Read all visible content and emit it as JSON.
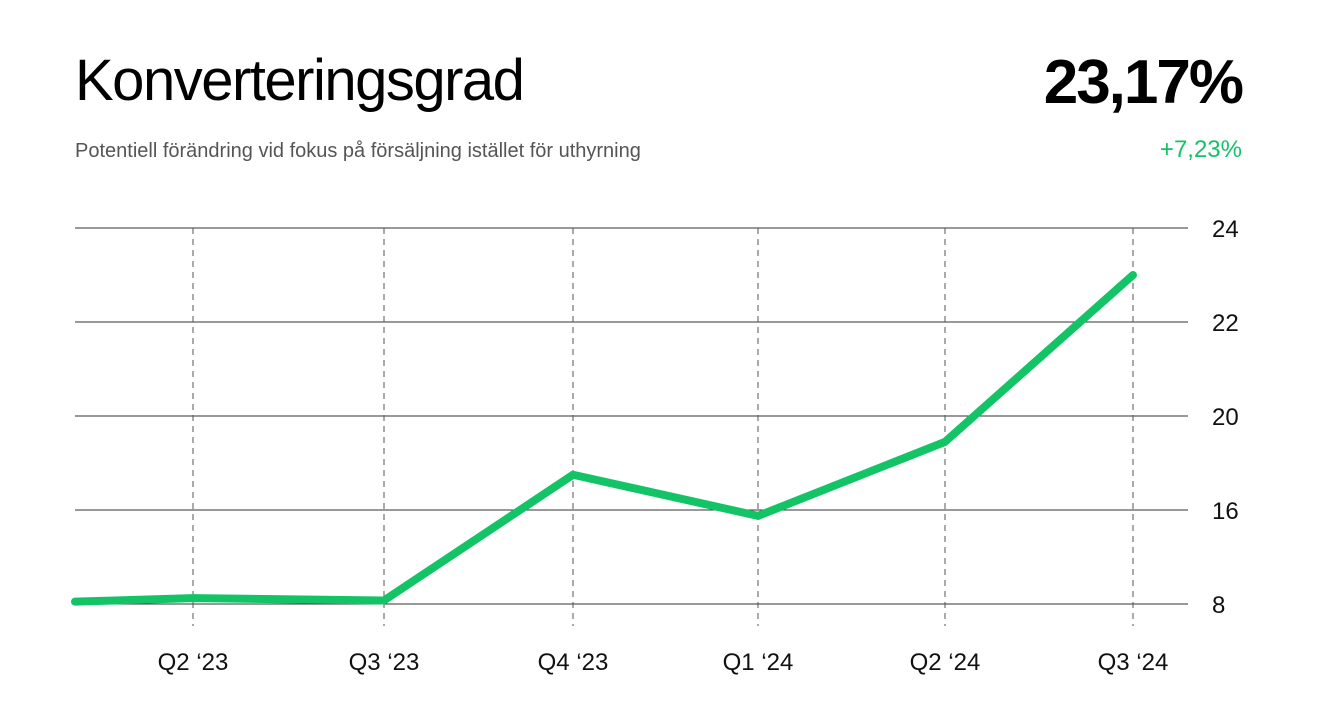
{
  "header": {
    "title": "Konverteringsgrad",
    "subtitle": "Potentiell förändring vid fokus på försäljning istället för uthyrning",
    "value": "23,17%",
    "change": "+7,23%"
  },
  "colors": {
    "line": "#12c466",
    "change": "#12c466",
    "grid": "#333333"
  },
  "chart_data": {
    "type": "line",
    "title": "Konverteringsgrad",
    "x_ticks": [
      "Q2 ‘23",
      "Q3 ‘23",
      "Q4 ‘23",
      "Q1 ‘24",
      "Q2 ‘24",
      "Q3 ‘24"
    ],
    "y_ticks": [
      "24",
      "22",
      "20",
      "16",
      "8"
    ],
    "y_axis_position": "right",
    "grid": {
      "horizontal": "solid",
      "vertical": "dashed"
    },
    "series": [
      {
        "points": [
          {
            "x": "start",
            "y": "8,2"
          },
          {
            "x": "Q2 ‘23",
            "y": "8,5"
          },
          {
            "x": "Q3 ‘23",
            "y": "8,3"
          },
          {
            "x": "Q4 ‘23",
            "y": "17,5"
          },
          {
            "x": "Q1 ‘24",
            "y": "15,5"
          },
          {
            "x": "Q2 ‘24",
            "y": "18,9"
          },
          {
            "x": "Q3 ‘24",
            "y": "23,0"
          }
        ]
      }
    ]
  }
}
